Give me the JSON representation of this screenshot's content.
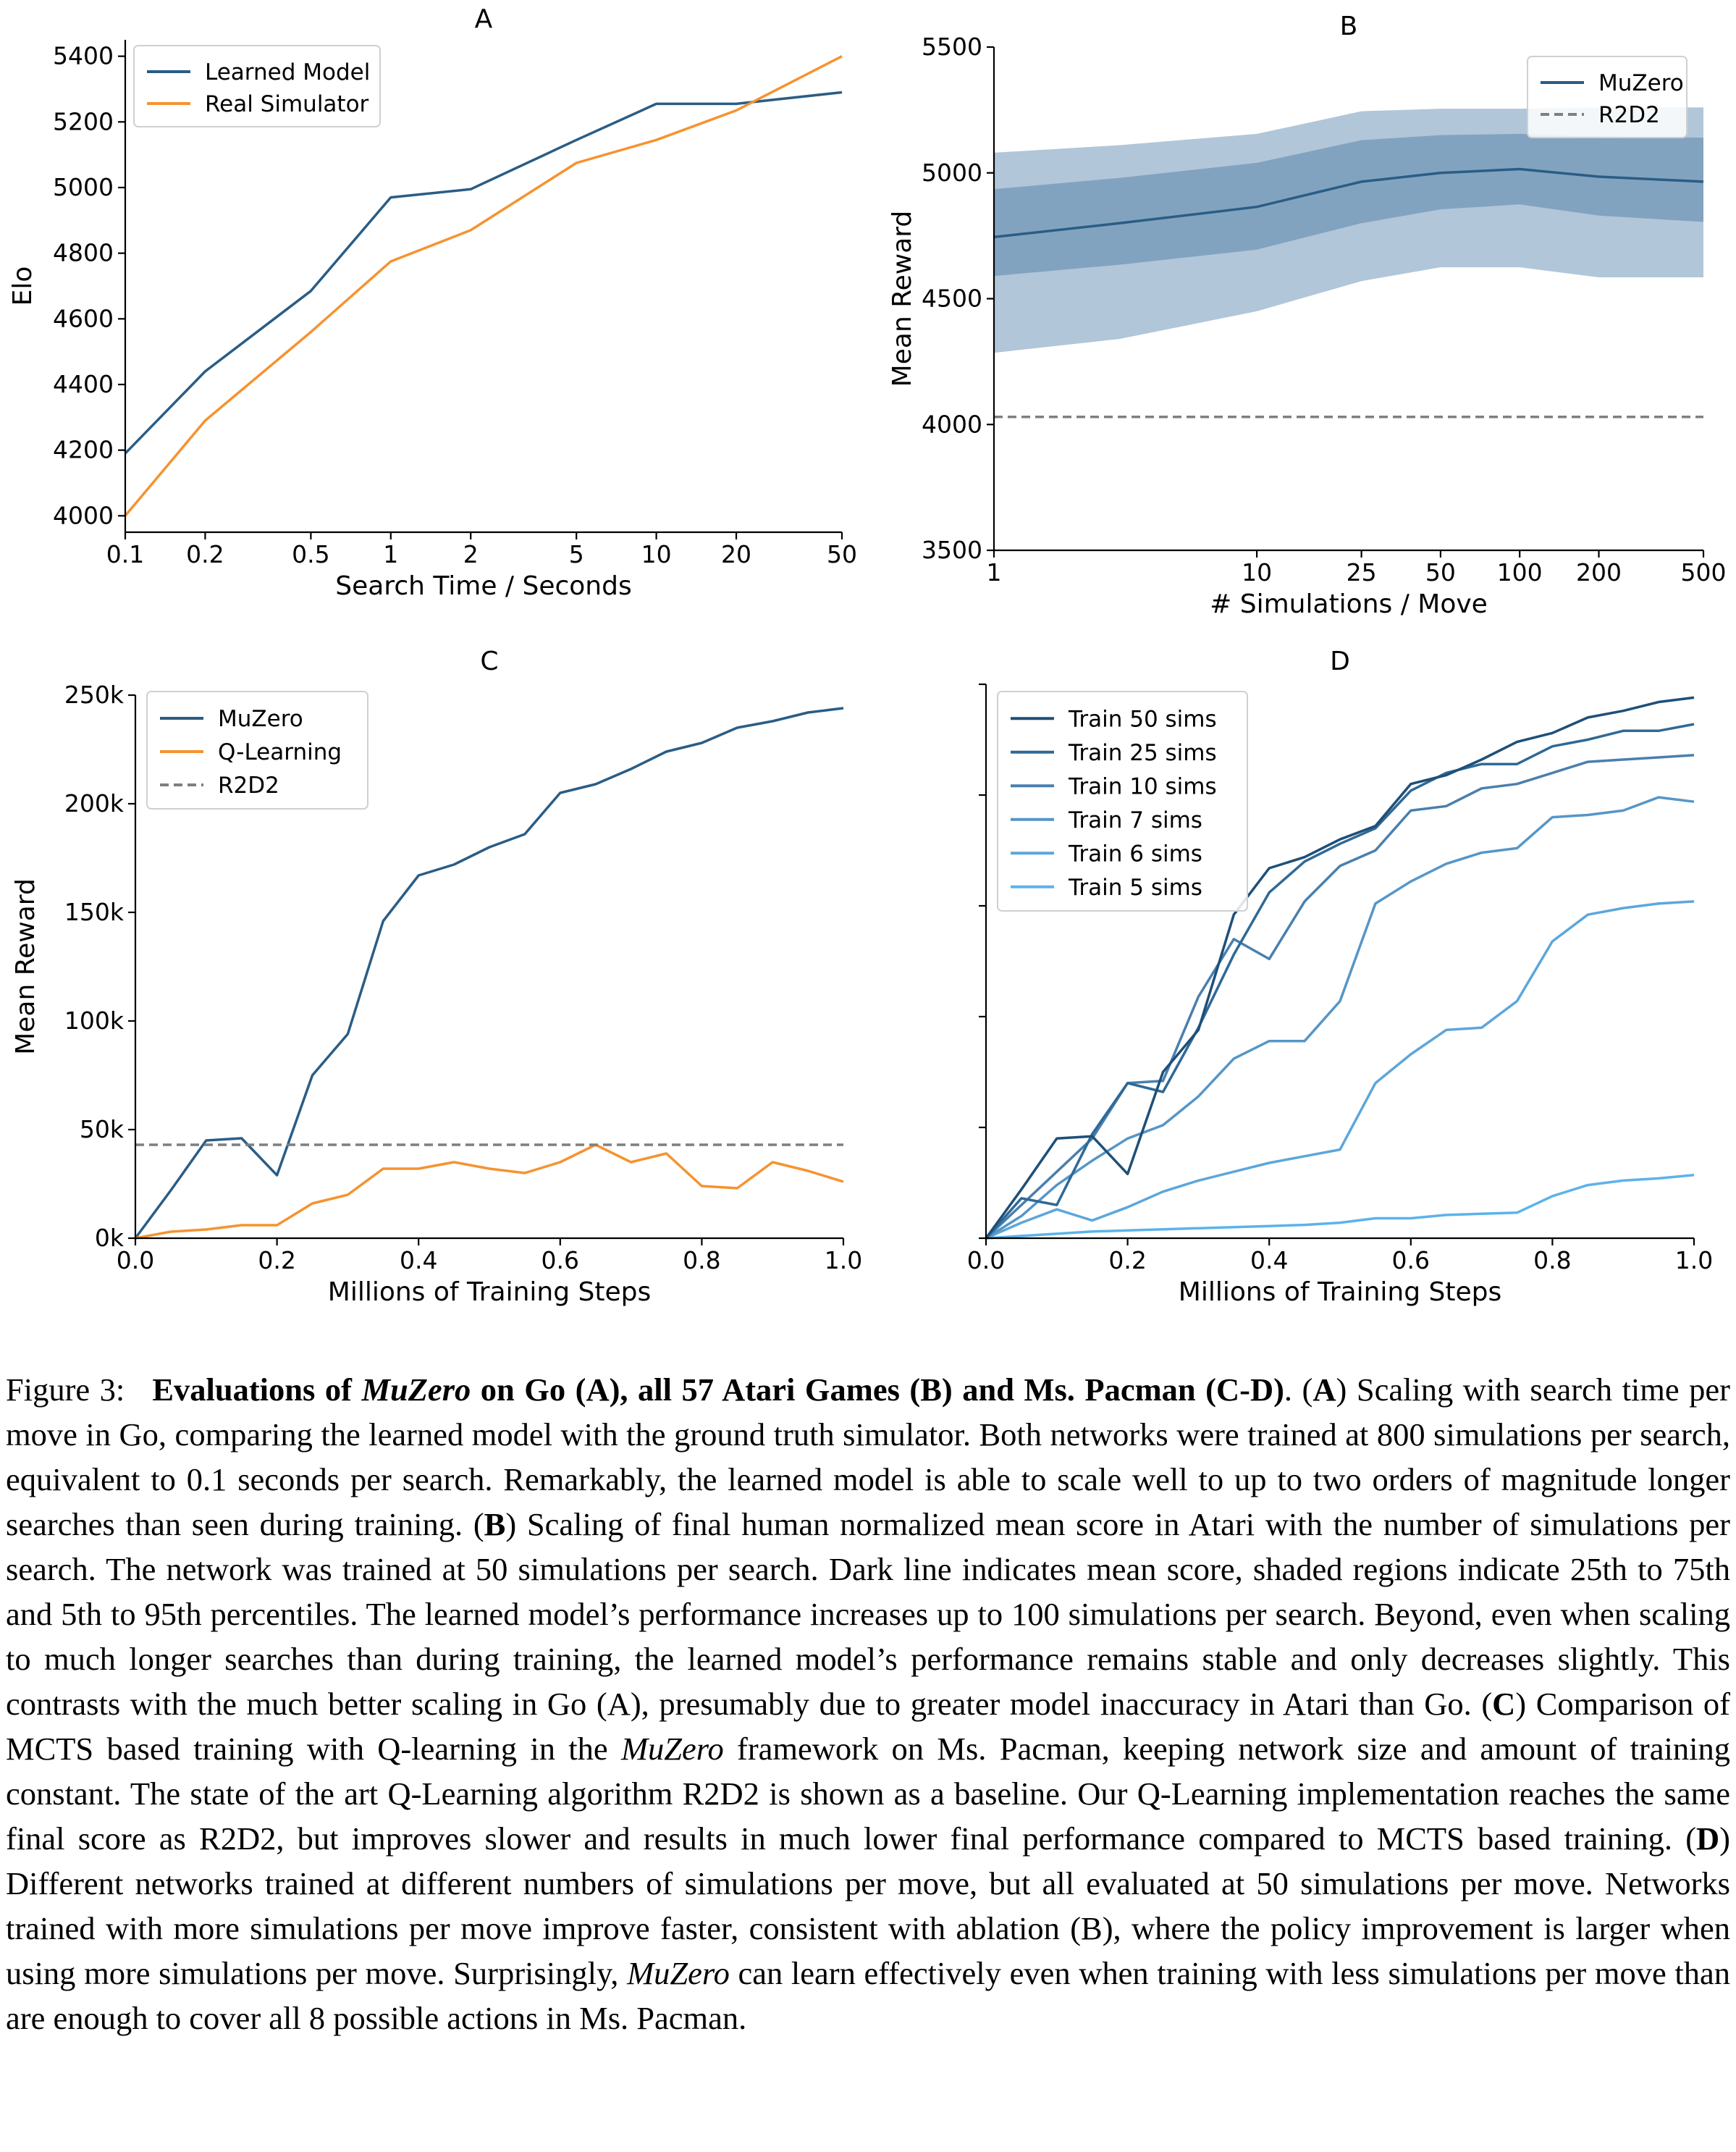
{
  "colors": {
    "blue": "#2a5d86",
    "orange": "#f59330",
    "gray": "#7f7f7f",
    "band_outer": "#a9c0d4",
    "band_inner": "#7d9fbd"
  },
  "chart_data": [
    {
      "id": "A",
      "type": "line",
      "title": "A",
      "xlabel": "Search Time / Seconds",
      "ylabel": "Elo",
      "xscale": "log",
      "xlim": [
        0.1,
        50
      ],
      "ylim": [
        3950,
        5450
      ],
      "xticks": [
        0.1,
        0.2,
        0.5,
        1,
        2,
        5,
        10,
        20,
        50
      ],
      "xtick_labels": [
        "0.1",
        "0.2",
        "0.5",
        "1",
        "2",
        "5",
        "10",
        "20",
        "50"
      ],
      "yticks": [
        4000,
        4200,
        4400,
        4600,
        4800,
        5000,
        5200,
        5400
      ],
      "ytick_labels": [
        "4000",
        "4200",
        "4400",
        "4600",
        "4800",
        "5000",
        "5200",
        "5400"
      ],
      "legend": "top-left",
      "series": [
        {
          "name": "Learned Model",
          "color": "#2a5d86",
          "x": [
            0.1,
            0.2,
            0.5,
            1,
            2,
            5,
            10,
            20,
            50
          ],
          "y": [
            4190,
            4440,
            4685,
            4970,
            4995,
            5145,
            5255,
            5255,
            5290
          ]
        },
        {
          "name": "Real Simulator",
          "color": "#f59330",
          "x": [
            0.1,
            0.2,
            0.5,
            1,
            2,
            5,
            10,
            20,
            50
          ],
          "y": [
            4000,
            4290,
            4560,
            4775,
            4870,
            5075,
            5145,
            5235,
            5400
          ]
        }
      ]
    },
    {
      "id": "B",
      "type": "line",
      "title": "B",
      "xlabel": "# Simulations / Move",
      "ylabel": "Mean Reward",
      "xscale": "log",
      "xlim": [
        1,
        500
      ],
      "ylim": [
        3500,
        5500
      ],
      "xticks": [
        1,
        10,
        25,
        50,
        100,
        200,
        500
      ],
      "xtick_labels": [
        "1",
        "10",
        "25",
        "50",
        "100",
        "200",
        "500"
      ],
      "yticks": [
        3500,
        4000,
        4500,
        5000,
        5500
      ],
      "ytick_labels": [
        "3500",
        "4000",
        "4500",
        "5000",
        "5500"
      ],
      "legend": "top-right",
      "x": [
        1,
        3,
        10,
        25,
        50,
        100,
        200,
        500
      ],
      "series": [
        {
          "name": "MuZero",
          "color": "#2a5d86",
          "y": [
            4745,
            4800,
            4865,
            4965,
            5000,
            5015,
            4985,
            4965
          ],
          "p25": [
            4590,
            4635,
            4695,
            4800,
            4855,
            4875,
            4830,
            4805
          ],
          "p75": [
            4935,
            4980,
            5040,
            5130,
            5150,
            5155,
            5145,
            5140
          ],
          "p5": [
            4285,
            4340,
            4450,
            4570,
            4625,
            4625,
            4585,
            4585
          ],
          "p95": [
            5080,
            5110,
            5155,
            5245,
            5255,
            5255,
            5260,
            5260
          ]
        },
        {
          "name": "R2D2",
          "color": "#7f7f7f",
          "dashed": true,
          "x": [
            1,
            500
          ],
          "y": [
            4030,
            4030
          ]
        }
      ]
    },
    {
      "id": "C",
      "type": "line",
      "title": "C",
      "xlabel": "Millions of Training Steps",
      "ylabel": "Mean Reward",
      "xlim": [
        0,
        1.0
      ],
      "ylim": [
        0,
        250000
      ],
      "xticks": [
        0,
        0.2,
        0.4,
        0.6,
        0.8,
        1.0
      ],
      "xtick_labels": [
        "0.0",
        "0.2",
        "0.4",
        "0.6",
        "0.8",
        "1.0"
      ],
      "yticks": [
        0,
        50000,
        100000,
        150000,
        200000,
        250000
      ],
      "ytick_labels": [
        "0k",
        "50k",
        "100k",
        "150k",
        "200k",
        "250k"
      ],
      "legend": "top-left",
      "x": [
        0,
        0.05,
        0.1,
        0.15,
        0.2,
        0.25,
        0.3,
        0.35,
        0.4,
        0.45,
        0.5,
        0.55,
        0.6,
        0.65,
        0.7,
        0.75,
        0.8,
        0.85,
        0.9,
        0.95,
        1.0
      ],
      "series": [
        {
          "name": "MuZero",
          "color": "#2a5d86",
          "y": [
            0,
            22000,
            45000,
            46000,
            29000,
            75000,
            94000,
            146000,
            167000,
            172000,
            180000,
            186000,
            205000,
            209000,
            216000,
            224000,
            228000,
            235000,
            238000,
            242000,
            244000
          ]
        },
        {
          "name": "Q-Learning",
          "color": "#f59330",
          "y": [
            0,
            3000,
            4000,
            6000,
            6000,
            16000,
            20000,
            32000,
            32000,
            35000,
            32000,
            30000,
            35000,
            43000,
            35000,
            39000,
            24000,
            23000,
            35000,
            31000,
            26000
          ]
        },
        {
          "name": "R2D2",
          "color": "#7f7f7f",
          "dashed": true,
          "x": [
            0,
            1.0
          ],
          "y": [
            43000,
            43000
          ]
        }
      ]
    },
    {
      "id": "D",
      "type": "line",
      "title": "D",
      "xlabel": "Millions of Training Steps",
      "ylabel": "",
      "xlim": [
        0,
        1.0
      ],
      "ylim": [
        0,
        250000
      ],
      "xticks": [
        0,
        0.2,
        0.4,
        0.6,
        0.8,
        1.0
      ],
      "xtick_labels": [
        "0.0",
        "0.2",
        "0.4",
        "0.6",
        "0.8",
        "1.0"
      ],
      "yticks": [
        0,
        50000,
        100000,
        150000,
        200000,
        250000
      ],
      "ytick_labels": [
        "",
        "",
        "",
        "",
        "",
        ""
      ],
      "legend": "top-left",
      "x": [
        0,
        0.05,
        0.1,
        0.15,
        0.2,
        0.25,
        0.3,
        0.35,
        0.4,
        0.45,
        0.5,
        0.55,
        0.6,
        0.65,
        0.7,
        0.75,
        0.8,
        0.85,
        0.9,
        0.95,
        1.0
      ],
      "series": [
        {
          "name": "Train 50 sims",
          "color": "#1e4f78",
          "y": [
            0,
            22000,
            45000,
            46000,
            29000,
            75000,
            94000,
            146000,
            167000,
            172000,
            180000,
            186000,
            205000,
            209000,
            216000,
            224000,
            228000,
            235000,
            238000,
            242000,
            244000
          ]
        },
        {
          "name": "Train 25 sims",
          "color": "#2f6996",
          "y": [
            0,
            18000,
            15000,
            47000,
            70000,
            66000,
            95000,
            128000,
            156000,
            170000,
            178000,
            185000,
            202000,
            210000,
            214000,
            214000,
            222000,
            225000,
            229000,
            229000,
            232000
          ]
        },
        {
          "name": "Train 10 sims",
          "color": "#4a7fae",
          "y": [
            0,
            15000,
            30000,
            45000,
            70000,
            71000,
            109000,
            135000,
            126000,
            152000,
            168000,
            175000,
            193000,
            195000,
            203000,
            205000,
            210000,
            215000,
            216000,
            217000,
            218000
          ]
        },
        {
          "name": "Train 7 sims",
          "color": "#5596c8",
          "y": [
            0,
            10000,
            24000,
            35000,
            45000,
            51000,
            64000,
            81000,
            89000,
            89000,
            107000,
            151000,
            161000,
            169000,
            174000,
            176000,
            190000,
            191000,
            193000,
            199000,
            197000
          ]
        },
        {
          "name": "Train 6 sims",
          "color": "#5ca6db",
          "y": [
            0,
            7000,
            13000,
            8000,
            14000,
            21000,
            26000,
            30000,
            34000,
            37000,
            40000,
            70000,
            83000,
            94000,
            95000,
            107000,
            134000,
            146000,
            149000,
            151000,
            152000
          ]
        },
        {
          "name": "Train 5 sims",
          "color": "#5bb3ea",
          "y": [
            0,
            1000,
            2000,
            3000,
            3500,
            4000,
            4500,
            5000,
            5500,
            6000,
            7000,
            9000,
            9000,
            10500,
            11000,
            11500,
            19000,
            24000,
            26000,
            27000,
            28500
          ]
        }
      ]
    }
  ],
  "caption": {
    "figlabel": "Figure 3:",
    "title_pre": "Evaluations of ",
    "title_em": "MuZero",
    "title_post": " on Go (A), all 57 Atari Games (B) and Ms. Pacman (C-D)",
    "s1a": ". (",
    "s1b": "A",
    "s1c": ") Scaling with search time per move in Go, comparing the learned model with the ground truth simulator. Both networks were trained at 800 simulations per search, equivalent to 0.1 seconds per search. Remarkably, the learned model is able to scale well to up to two orders of magnitude longer searches than seen during training. (",
    "s2b": "B",
    "s2c": ") Scaling of final human normalized mean score in Atari with the number of simulations per search. The network was trained at 50 simulations per search. Dark line indicates mean score, shaded regions indicate 25th to 75th and 5th to 95th percentiles. The learned model’s performance increases up to 100 simulations per search. Beyond, even when scaling to much longer searches than during training, the learned model’s performance remains stable and only decreases slightly. This contrasts with the much better scaling in Go (A), presumably due to greater model inaccuracy in Atari than Go. (",
    "s3b": "C",
    "s3c": ") Comparison of MCTS based training with Q-learning in the ",
    "s3em": "MuZero",
    "s3d": " framework on Ms. Pacman, keeping network size and amount of training constant. The state of the art Q-Learning algorithm R2D2 is shown as a baseline. Our Q-Learning implementation reaches the same final score as R2D2, but improves slower and results in much lower final performance compared to MCTS based training. (",
    "s4b": "D",
    "s4c": ") Different networks trained at different numbers of simulations per move, but all evaluated at 50 simulations per move. Networks trained with more simulations per move improve faster, consistent with ablation (B), where the policy improvement is larger when using more simulations per move. Surprisingly, ",
    "s4em": "MuZero",
    "s4d": " can learn effectively even when training with less simulations per move than are enough to cover all 8 possible actions in Ms. Pacman."
  }
}
